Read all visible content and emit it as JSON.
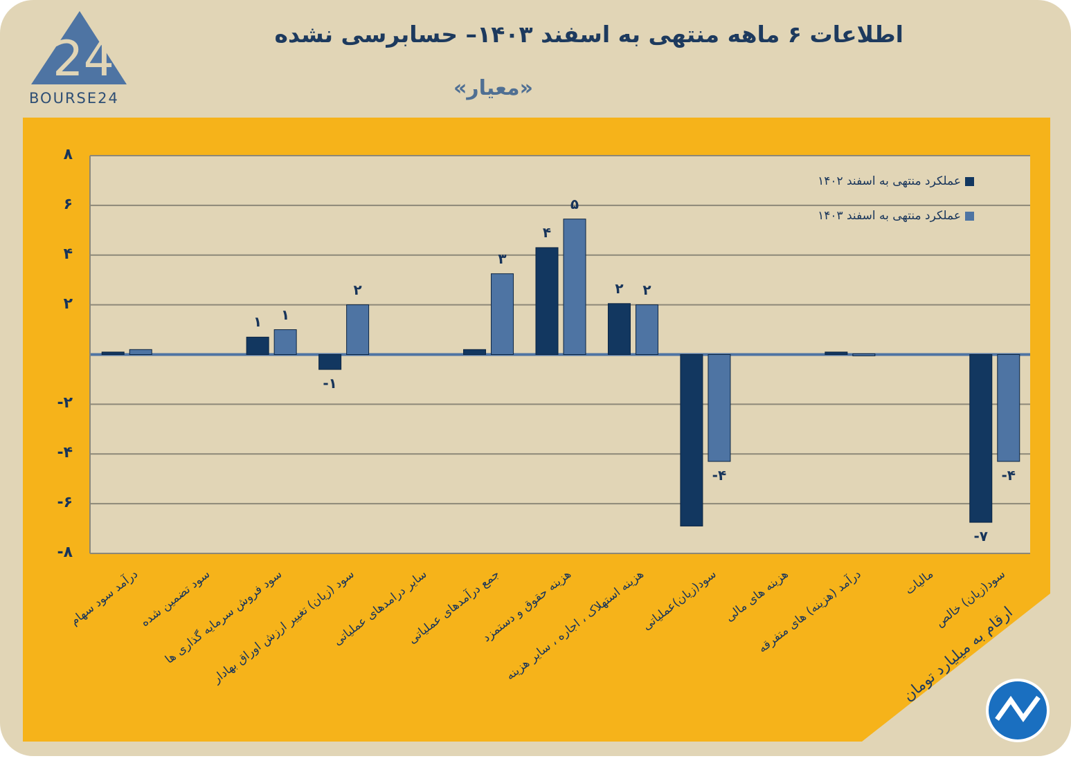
{
  "header": {
    "title": "اطلاعات ۶ ماهه منتهی به اسفند ۱۴۰۳– حسابرسی نشده",
    "subtitle": "«معیار»",
    "logo_text": "BOURSE24"
  },
  "footer": {
    "unit_note": "ارقام به میلیارد تومان"
  },
  "colors": {
    "frame": "#e1d5b6",
    "panel": "#f6b31a",
    "series_1402": "#123760",
    "series_1403": "#4e74a3",
    "text": "#17345a"
  },
  "chart_data": {
    "type": "bar",
    "title": "اطلاعات ۶ ماهه منتهی به اسفند ۱۴۰۳– حسابرسی نشده",
    "xlabel": "",
    "ylabel": "ارقام به میلیارد تومان",
    "ylim": [
      -8,
      8
    ],
    "yticks": [
      8,
      6,
      4,
      2,
      -2,
      -4,
      -6,
      -8
    ],
    "ytick_labels": [
      "۸",
      "۶",
      "۴",
      "۲",
      "-۲",
      "-۴",
      "-۶",
      "-۸"
    ],
    "grid": true,
    "legend_position": "top-right",
    "categories": [
      "درآمد سود سهام",
      "سود تضمین شده",
      "سود فروش سرمایه گذاری ها",
      "سود (زیان) تغییر ارزش اوراق بهادار",
      "سایر درامدهای عملیاتی",
      "جمع درآمدهای عملیاتی",
      "هزینه حقوق و دستمزد",
      "هزینه استهلاک ، اجاره ، سایر هزینه",
      "سود(زیان)عملیاتی",
      "هزینه های مالی",
      "درآمد (هزینه) های متفرقه",
      "مالیات",
      "سود(زیان) خالص"
    ],
    "series": [
      {
        "name": "عملکرد منتهی به اسفند ۱۴۰۲",
        "values": [
          0.1,
          0,
          0.7,
          -0.6,
          0,
          0.2,
          4.3,
          2.05,
          -6.9,
          0,
          0.1,
          0,
          -6.75
        ],
        "labels": [
          "",
          "",
          "۱",
          "-۱",
          "",
          "",
          "۴",
          "۲",
          "",
          "",
          "",
          "",
          "-۷"
        ]
      },
      {
        "name": "عملکرد منتهی به اسفند ۱۴۰۳",
        "values": [
          0.2,
          0,
          1.0,
          2.0,
          0,
          3.25,
          5.45,
          2.0,
          -4.3,
          0,
          0.03,
          0,
          -4.3
        ],
        "labels": [
          "",
          "",
          "۱",
          "۲",
          "",
          "۳",
          "۵",
          "۲",
          "-۴",
          "",
          "",
          "",
          "-۴"
        ]
      }
    ]
  }
}
